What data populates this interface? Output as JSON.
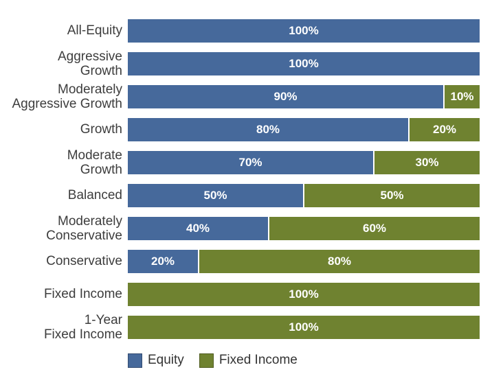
{
  "chart_data": {
    "type": "bar",
    "orientation": "horizontal",
    "stacked": true,
    "xlim": [
      0,
      100
    ],
    "grid": false,
    "legend_position": "bottom",
    "value_label_format": "{value}%",
    "value_label_color": "#ffffff",
    "category_text_color": "#3d3d3d",
    "categories": [
      "All-Equity",
      "Aggressive Growth",
      "Moderately Aggressive Growth",
      "Growth",
      "Moderate Growth",
      "Balanced",
      "Moderately Conservative",
      "Conservative",
      "Fixed Income",
      "1-Year Fixed Income"
    ],
    "category_label_lines": [
      [
        "All-Equity"
      ],
      [
        "Aggressive",
        "Growth"
      ],
      [
        "Moderately",
        "Aggressive Growth"
      ],
      [
        "Growth"
      ],
      [
        "Moderate",
        "Growth"
      ],
      [
        "Balanced"
      ],
      [
        "Moderately",
        "Conservative"
      ],
      [
        "Conservative"
      ],
      [
        "Fixed Income"
      ],
      [
        "1-Year",
        "Fixed Income"
      ]
    ],
    "series": [
      {
        "name": "Equity",
        "color": "#46699B",
        "values": [
          100,
          100,
          90,
          80,
          70,
          50,
          40,
          20,
          0,
          0
        ]
      },
      {
        "name": "Fixed Income",
        "color": "#6F8230",
        "values": [
          0,
          0,
          10,
          20,
          30,
          50,
          60,
          80,
          100,
          100
        ]
      }
    ],
    "segment_labels": [
      [
        "100%",
        ""
      ],
      [
        "100%",
        ""
      ],
      [
        "90%",
        "10%"
      ],
      [
        "80%",
        "20%"
      ],
      [
        "70%",
        "30%"
      ],
      [
        "50%",
        "50%"
      ],
      [
        "40%",
        "60%"
      ],
      [
        "20%",
        "80%"
      ],
      [
        "",
        "100%"
      ],
      [
        "",
        "100%"
      ]
    ]
  },
  "legend": {
    "items": [
      {
        "label": "Equity",
        "color": "#46699B"
      },
      {
        "label": "Fixed Income",
        "color": "#6F8230"
      }
    ]
  }
}
